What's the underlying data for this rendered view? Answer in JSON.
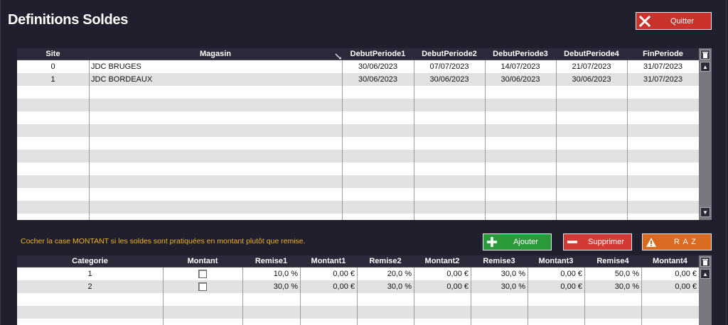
{
  "window": {
    "title": "Definitions Soldes"
  },
  "buttons": {
    "quit": {
      "label": "Quitter",
      "icon": "x-icon"
    },
    "add": {
      "label": "Ajouter",
      "icon": "plus-icon"
    },
    "delete": {
      "label": "Supprimer",
      "icon": "minus-icon"
    },
    "reset": {
      "label": "R A Z",
      "icon": "warning-icon"
    }
  },
  "note": "Cocher la case MONTANT si les soldes sont pratiquées en montant plutôt que remise.",
  "colors": {
    "background": "#1f1f2e",
    "header": "#2a2a3a",
    "note": "#f0b020",
    "quit": "#c9332b",
    "add": "#2a9a3a",
    "delete": "#d23a36",
    "reset": "#d96a20"
  },
  "stores_table": {
    "columns": [
      "Site",
      "Magasin",
      "DebutPeriode1",
      "DebutPeriode2",
      "DebutPeriode3",
      "DebutPeriode4",
      "FinPeriode"
    ],
    "rows": [
      [
        "0",
        "JDC BRUGES",
        "30/06/2023",
        "07/07/2023",
        "14/07/2023",
        "21/07/2023",
        "31/07/2023"
      ],
      [
        "1",
        "JDC BORDEAUX",
        "30/06/2023",
        "30/06/2023",
        "30/06/2023",
        "30/06/2023",
        "31/07/2023"
      ]
    ]
  },
  "discount_table": {
    "columns": [
      "Categorie",
      "Montant",
      "Remise1",
      "Montant1",
      "Remise2",
      "Montant2",
      "Remise3",
      "Montant3",
      "Remise4",
      "Montant4"
    ],
    "rows": [
      [
        "1",
        false,
        "10,0 %",
        "0,00 €",
        "20,0 %",
        "0,00 €",
        "30,0 %",
        "0,00 €",
        "50,0 %",
        "0,00 €"
      ],
      [
        "2",
        false,
        "30,0 %",
        "0,00 €",
        "30,0 %",
        "0,00 €",
        "30,0 %",
        "0,00 €",
        "30,0 %",
        "0,00 €"
      ]
    ]
  }
}
